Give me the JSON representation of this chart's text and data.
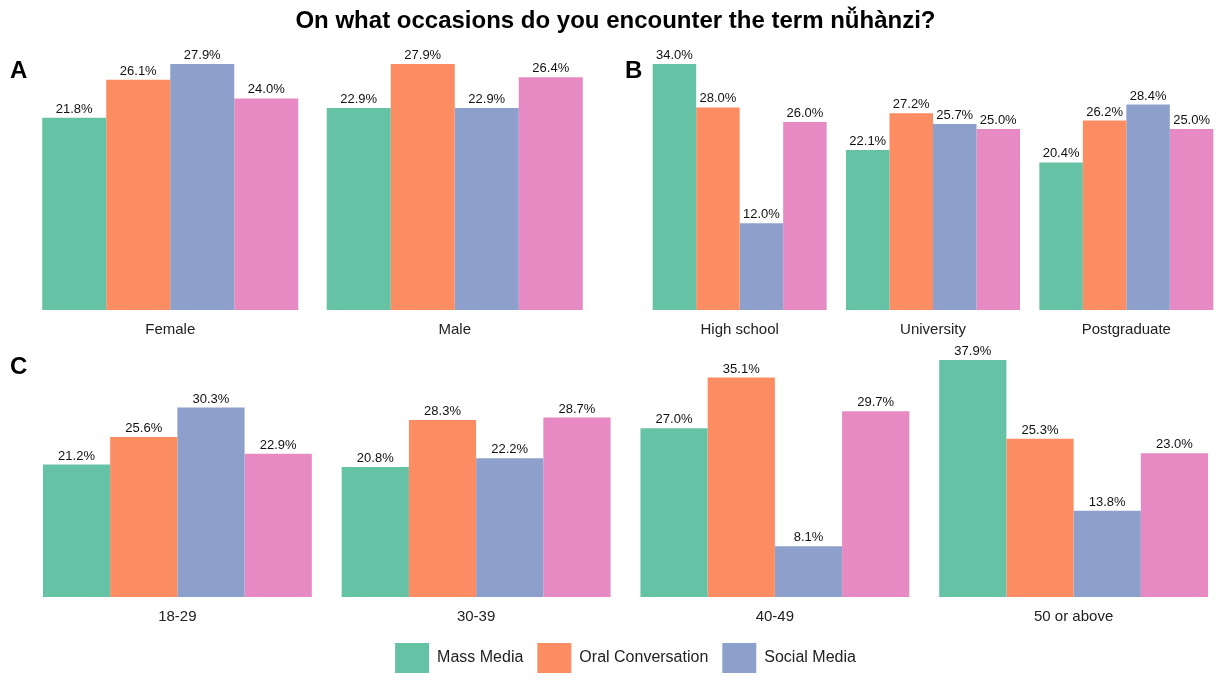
{
  "chart_data": [
    {
      "type": "bar",
      "title": "On what occasions do you encounter the term nǚhànzi?",
      "annotations": [
        "A"
      ],
      "categories": [
        "Female",
        "Male"
      ],
      "grid": false,
      "legend": false,
      "tick_labels": "x",
      "series": [
        {
          "color": "#66c2a5",
          "values": [
            21.8,
            22.9
          ],
          "value_labels": [
            "21.8%",
            "22.9%"
          ]
        },
        {
          "color": "#fc8d62",
          "values": [
            26.1,
            27.9
          ],
          "value_labels": [
            "26.1%",
            "27.9%"
          ]
        },
        {
          "color": "#8da0cb",
          "values": [
            27.9,
            22.9
          ],
          "value_labels": [
            "27.9%",
            "22.9%"
          ]
        },
        {
          "color": "#e78ac3",
          "values": [
            24.0,
            26.4
          ],
          "value_labels": [
            "24.0%",
            "26.4%"
          ]
        }
      ]
    },
    {
      "type": "bar",
      "annotations": [
        "B"
      ],
      "categories": [
        "High school",
        "University",
        "Postgraduate"
      ],
      "grid": false,
      "legend": false,
      "tick_labels": "x",
      "series": [
        {
          "color": "#66c2a5",
          "values": [
            34.0,
            22.1,
            20.4
          ],
          "value_labels": [
            "34.0%",
            "22.1%",
            "20.4%"
          ]
        },
        {
          "color": "#fc8d62",
          "values": [
            28.0,
            27.2,
            26.2
          ],
          "value_labels": [
            "28.0%",
            "27.2%",
            "26.2%"
          ]
        },
        {
          "color": "#8da0cb",
          "values": [
            12.0,
            25.7,
            28.4
          ],
          "value_labels": [
            "12.0%",
            "25.7%",
            "28.4%"
          ]
        },
        {
          "color": "#e78ac3",
          "values": [
            26.0,
            25.0,
            25.0
          ],
          "value_labels": [
            "26.0%",
            "25.0%",
            "25.0%"
          ]
        }
      ]
    },
    {
      "type": "bar",
      "annotations": [
        "C"
      ],
      "categories": [
        "18-29",
        "30-39",
        "40-49",
        "50 or above"
      ],
      "grid": false,
      "legend": "bottom",
      "tick_labels": "x",
      "series": [
        {
          "name": "Mass Media",
          "color": "#66c2a5",
          "values": [
            21.2,
            20.8,
            27.0,
            37.9
          ],
          "value_labels": [
            "21.2%",
            "20.8%",
            "27.0%",
            "37.9%"
          ]
        },
        {
          "name": "Oral Conversation",
          "color": "#fc8d62",
          "values": [
            25.6,
            28.3,
            35.1,
            25.3
          ],
          "value_labels": [
            "25.6%",
            "28.3%",
            "35.1%",
            "25.3%"
          ]
        },
        {
          "name": "Social Media",
          "color": "#8da0cb",
          "values": [
            30.3,
            22.2,
            8.1,
            13.8
          ],
          "value_labels": [
            "30.3%",
            "22.2%",
            "8.1%",
            "13.8%"
          ]
        },
        {
          "color": "#e78ac3",
          "values": [
            22.9,
            28.7,
            29.7,
            23.0
          ],
          "value_labels": [
            "22.9%",
            "28.7%",
            "29.7%",
            "23.0%"
          ]
        }
      ]
    }
  ]
}
